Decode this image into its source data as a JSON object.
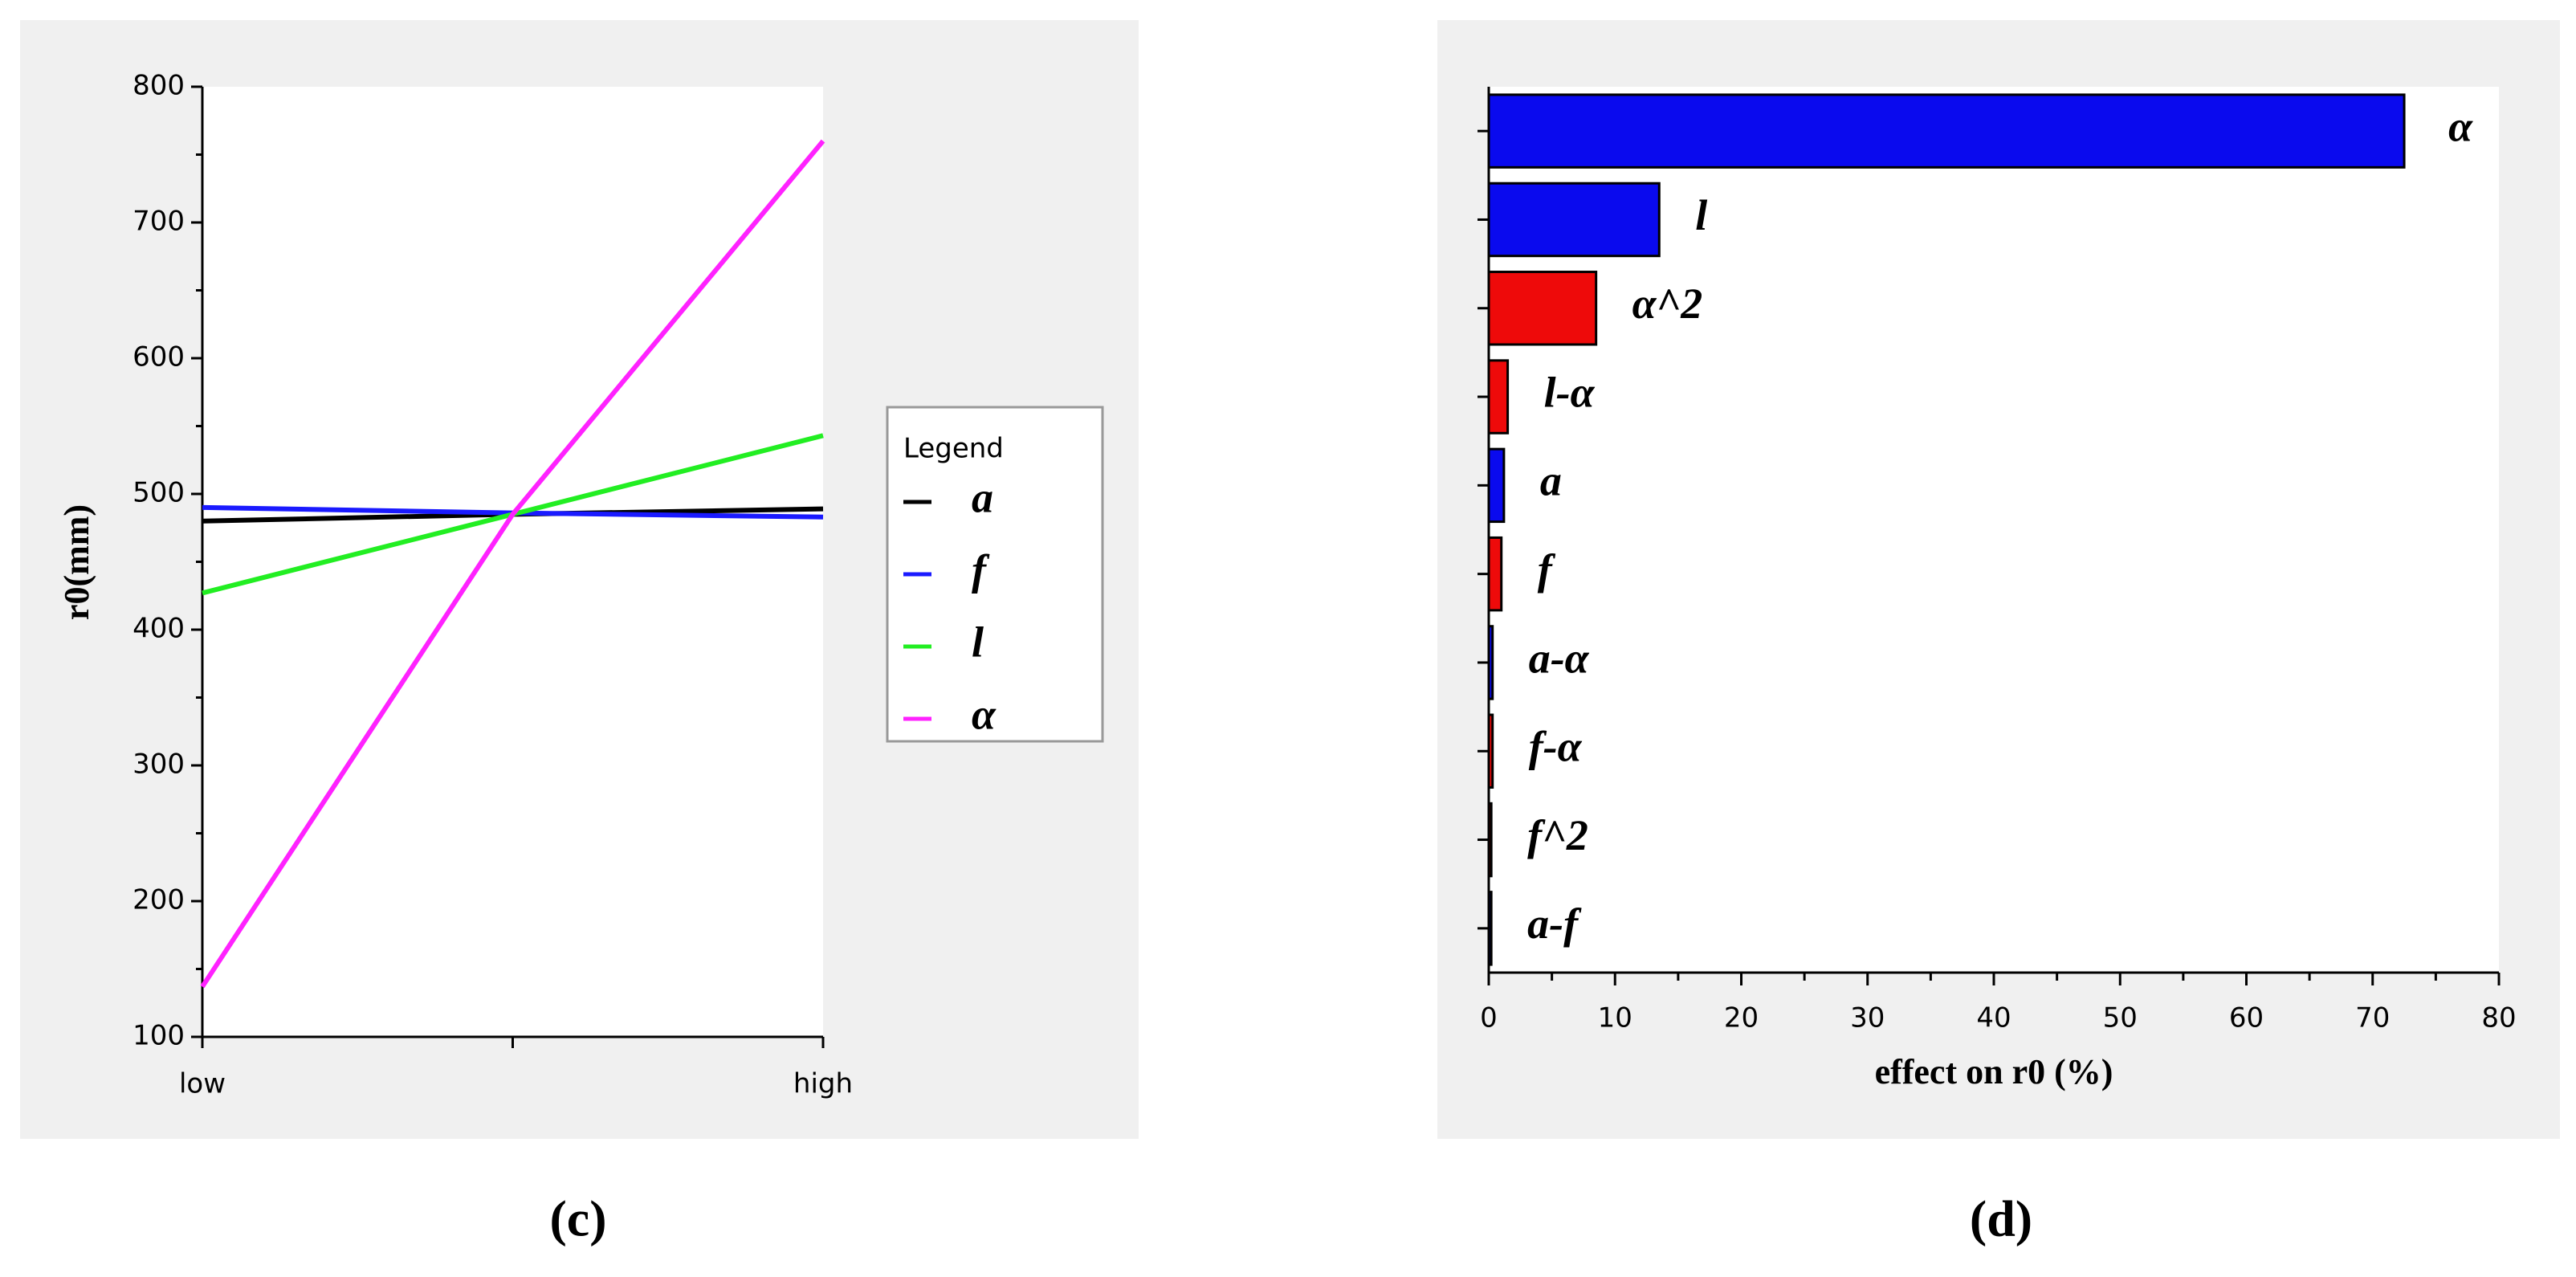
{
  "chart_data": [
    {
      "type": "line",
      "caption": "(c)",
      "y_label": "r0(mm)",
      "legend_title": "Legend",
      "x": [
        0,
        0.5,
        1
      ],
      "xlim": [
        0,
        1
      ],
      "xticks": [
        {
          "value": 0,
          "label": "low"
        },
        {
          "value": 0.5,
          "label": null
        },
        {
          "value": 1,
          "label": "high"
        }
      ],
      "ylim": [
        100,
        800
      ],
      "yticks": [
        100,
        200,
        300,
        400,
        500,
        600,
        700,
        800
      ],
      "series": [
        {
          "name": "a",
          "color": "#000000",
          "values": [
            480,
            485,
            489
          ]
        },
        {
          "name": "f",
          "color": "#1a1aff",
          "values": [
            490,
            486,
            483
          ]
        },
        {
          "name": "l",
          "color": "#22ee22",
          "values": [
            427,
            485,
            543
          ]
        },
        {
          "name": "α",
          "color": "#ff22ff",
          "values": [
            137,
            485,
            760
          ]
        }
      ]
    },
    {
      "type": "barh",
      "caption": "(d)",
      "x_label": "effect on r0 (%)",
      "categories": [
        "α",
        "l",
        "α^2",
        "l-α",
        "a",
        "f",
        "a-α",
        "f-α",
        "f^2",
        "a-f"
      ],
      "values": [
        72.5,
        13.5,
        8.5,
        1.5,
        1.2,
        1.0,
        0.3,
        0.3,
        0.2,
        0.2
      ],
      "colors": [
        "#0a0aee",
        "#0a0aee",
        "#ee0a0a",
        "#ee0a0a",
        "#0a0aee",
        "#ee0a0a",
        "#0a0aee",
        "#ee0a0a",
        "#ee0a0a",
        "#0a0aee"
      ],
      "xlim": [
        0,
        80
      ],
      "xticks": [
        0,
        10,
        20,
        30,
        40,
        50,
        60,
        70,
        80
      ]
    }
  ]
}
